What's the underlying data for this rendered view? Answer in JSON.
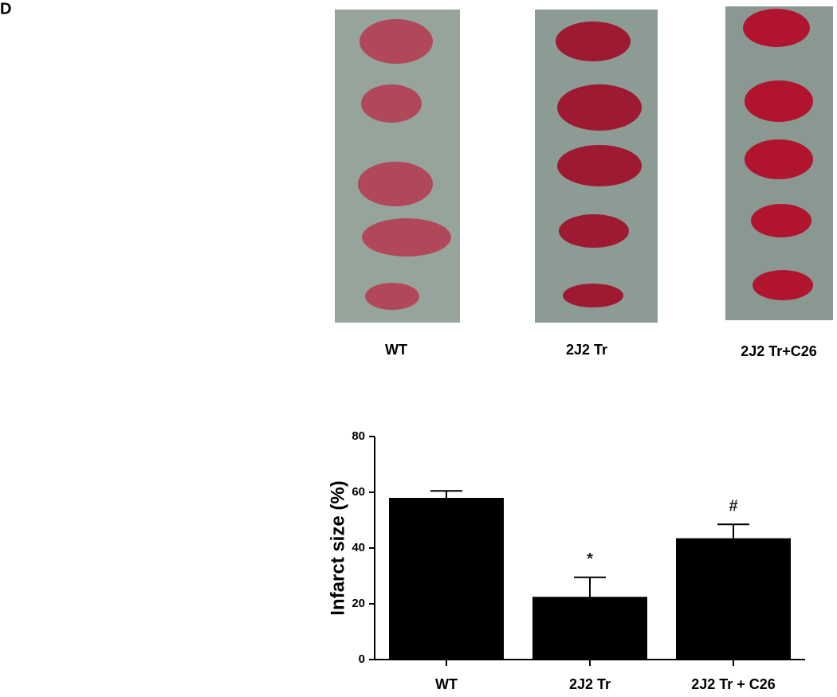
{
  "panel_label": "D",
  "photos": {
    "labels": [
      "WT",
      "2J2 Tr",
      "2J2 Tr+C26"
    ]
  },
  "chart_data": {
    "type": "bar",
    "ylabel": "Infarct size (%)",
    "categories": [
      "WT",
      "2J2 Tr",
      "2J2 Tr + C26"
    ],
    "values": [
      58,
      22.5,
      43.5
    ],
    "errors": [
      2.5,
      7,
      5
    ],
    "significance": [
      null,
      "*",
      "#"
    ],
    "color": "#000000",
    "ylim": [
      0,
      80
    ],
    "yticks": [
      0,
      20,
      40,
      60,
      80
    ]
  }
}
